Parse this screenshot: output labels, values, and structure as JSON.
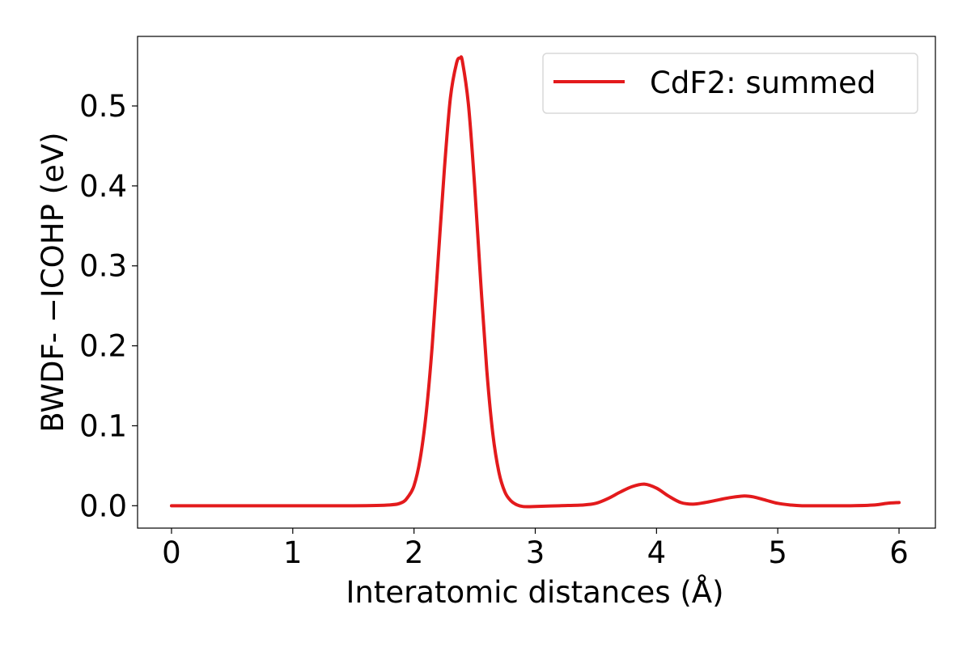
{
  "chart_data": {
    "type": "line",
    "title": "",
    "xlabel": "Interatomic distances (Å)",
    "ylabel": "BWDF- −ICOHP (eV)",
    "xlim": [
      -0.28,
      6.3
    ],
    "ylim": [
      -0.028,
      0.587
    ],
    "xticks": [
      0,
      1,
      2,
      3,
      4,
      5,
      6
    ],
    "xtick_labels": [
      "0",
      "1",
      "2",
      "3",
      "4",
      "5",
      "6"
    ],
    "yticks": [
      0.0,
      0.1,
      0.2,
      0.3,
      0.4,
      0.5
    ],
    "ytick_labels": [
      "0.0",
      "0.1",
      "0.2",
      "0.3",
      "0.4",
      "0.5"
    ],
    "grid": false,
    "legend_position": "top-right",
    "series": [
      {
        "name": "CdF2: summed",
        "color": "#e31a1c",
        "x": [
          0.0,
          0.5,
          1.0,
          1.5,
          1.8,
          1.9,
          1.95,
          2.0,
          2.05,
          2.1,
          2.15,
          2.2,
          2.25,
          2.3,
          2.35,
          2.38,
          2.4,
          2.45,
          2.5,
          2.55,
          2.6,
          2.65,
          2.7,
          2.75,
          2.8,
          2.85,
          2.9,
          3.0,
          3.2,
          3.4,
          3.5,
          3.6,
          3.7,
          3.8,
          3.9,
          4.0,
          4.1,
          4.2,
          4.3,
          4.4,
          4.5,
          4.6,
          4.7,
          4.75,
          4.8,
          4.9,
          5.0,
          5.1,
          5.2,
          5.4,
          5.6,
          5.8,
          5.9,
          6.0
        ],
        "y": [
          0.0,
          0.0,
          0.0,
          0.0,
          0.001,
          0.004,
          0.011,
          0.025,
          0.058,
          0.115,
          0.2,
          0.31,
          0.42,
          0.51,
          0.553,
          0.56,
          0.555,
          0.5,
          0.4,
          0.28,
          0.17,
          0.09,
          0.042,
          0.017,
          0.006,
          0.001,
          -0.001,
          -0.001,
          0.0,
          0.001,
          0.003,
          0.009,
          0.017,
          0.024,
          0.027,
          0.022,
          0.012,
          0.004,
          0.002,
          0.004,
          0.007,
          0.01,
          0.012,
          0.012,
          0.011,
          0.007,
          0.003,
          0.001,
          0.0,
          0.0,
          0.0,
          0.001,
          0.003,
          0.004
        ]
      }
    ]
  }
}
